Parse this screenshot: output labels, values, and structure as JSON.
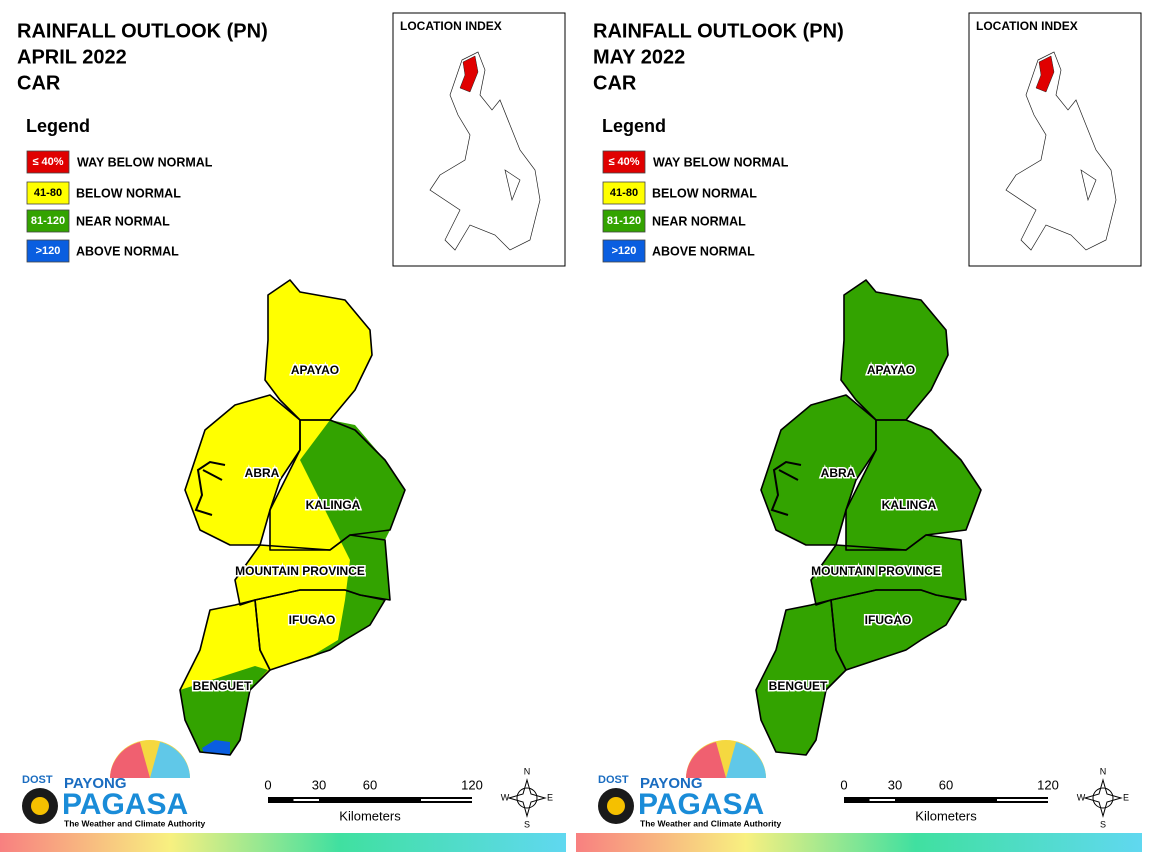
{
  "panels": [
    {
      "title": [
        "RAINFALL OUTLOOK (PN)",
        "APRIL 2022",
        "CAR"
      ],
      "legend_title": "Legend",
      "legend": [
        {
          "swatch": "≤ 40%",
          "label": "WAY BELOW NORMAL",
          "color": "#e00000"
        },
        {
          "swatch": "41-80",
          "label": "BELOW NORMAL",
          "color": "#ffff00"
        },
        {
          "swatch": "81-120",
          "label": "NEAR NORMAL",
          "color": "#33a300"
        },
        {
          "swatch": ">120",
          "label": "ABOVE NORMAL",
          "color": "#0a5ee0"
        }
      ],
      "inset_title": "LOCATION INDEX",
      "provinces": [
        "APAYAO",
        "ABRA",
        "KALINGA",
        "MOUNTAIN PROVINCE",
        "IFUGAO",
        "BENGUET"
      ],
      "scale": {
        "ticks": [
          0,
          30,
          60,
          120
        ],
        "unit": "Kilometers"
      },
      "compass": [
        "N",
        "E",
        "S",
        "W"
      ],
      "logo": {
        "dost": "DOST",
        "payong": "PAYONG",
        "pagasa": "PAGASA",
        "tagline": "The Weather and Climate Authority"
      }
    },
    {
      "title": [
        "RAINFALL OUTLOOK (PN)",
        "MAY 2022",
        "CAR"
      ],
      "legend_title": "Legend",
      "legend": [
        {
          "swatch": "≤ 40%",
          "label": "WAY BELOW NORMAL",
          "color": "#e00000"
        },
        {
          "swatch": "41-80",
          "label": "BELOW NORMAL",
          "color": "#ffff00"
        },
        {
          "swatch": "81-120",
          "label": "NEAR NORMAL",
          "color": "#33a300"
        },
        {
          "swatch": ">120",
          "label": "ABOVE NORMAL",
          "color": "#0a5ee0"
        }
      ],
      "inset_title": "LOCATION INDEX",
      "provinces": [
        "APAYAO",
        "ABRA",
        "KALINGA",
        "MOUNTAIN PROVINCE",
        "IFUGAO",
        "BENGUET"
      ],
      "scale": {
        "ticks": [
          0,
          30,
          60,
          120
        ],
        "unit": "Kilometers"
      },
      "compass": [
        "N",
        "E",
        "S",
        "W"
      ],
      "logo": {
        "dost": "DOST",
        "payong": "PAYONG",
        "pagasa": "PAGASA",
        "tagline": "The Weather and Climate Authority"
      }
    }
  ]
}
